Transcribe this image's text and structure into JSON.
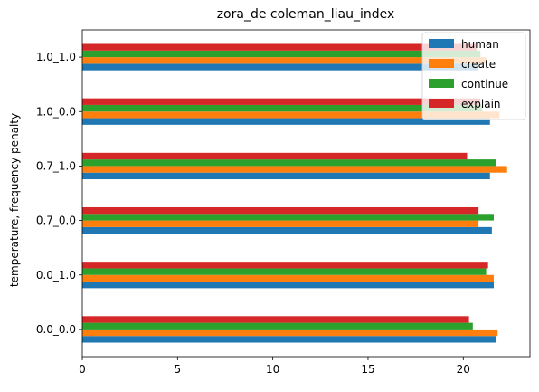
{
  "chart_data": {
    "type": "bar",
    "orientation": "horizontal",
    "title": "zora_de coleman_liau_index",
    "xlabel": "",
    "ylabel": "temperature, frequency penalty",
    "categories": [
      "0.0_0.0",
      "0.0_1.0",
      "0.7_0.0",
      "0.7_1.0",
      "1.0_0.0",
      "1.0_1.0"
    ],
    "xlim": [
      0,
      23.5
    ],
    "xticks": [
      0,
      5,
      10,
      15,
      20
    ],
    "grid": false,
    "legend_position": "top-right",
    "series": [
      {
        "name": "human",
        "color": "#1f77b4",
        "values": [
          21.7,
          21.6,
          21.5,
          21.4,
          21.4,
          20.8
        ]
      },
      {
        "name": "create",
        "color": "#ff7f0e",
        "values": [
          21.8,
          21.6,
          20.8,
          22.3,
          21.9,
          21.2
        ]
      },
      {
        "name": "continue",
        "color": "#2ca02c",
        "values": [
          20.5,
          21.2,
          21.6,
          21.7,
          21.0,
          20.9
        ]
      },
      {
        "name": "explain",
        "color": "#d62728",
        "values": [
          20.3,
          21.3,
          20.8,
          20.2,
          20.9,
          20.7
        ]
      }
    ]
  }
}
